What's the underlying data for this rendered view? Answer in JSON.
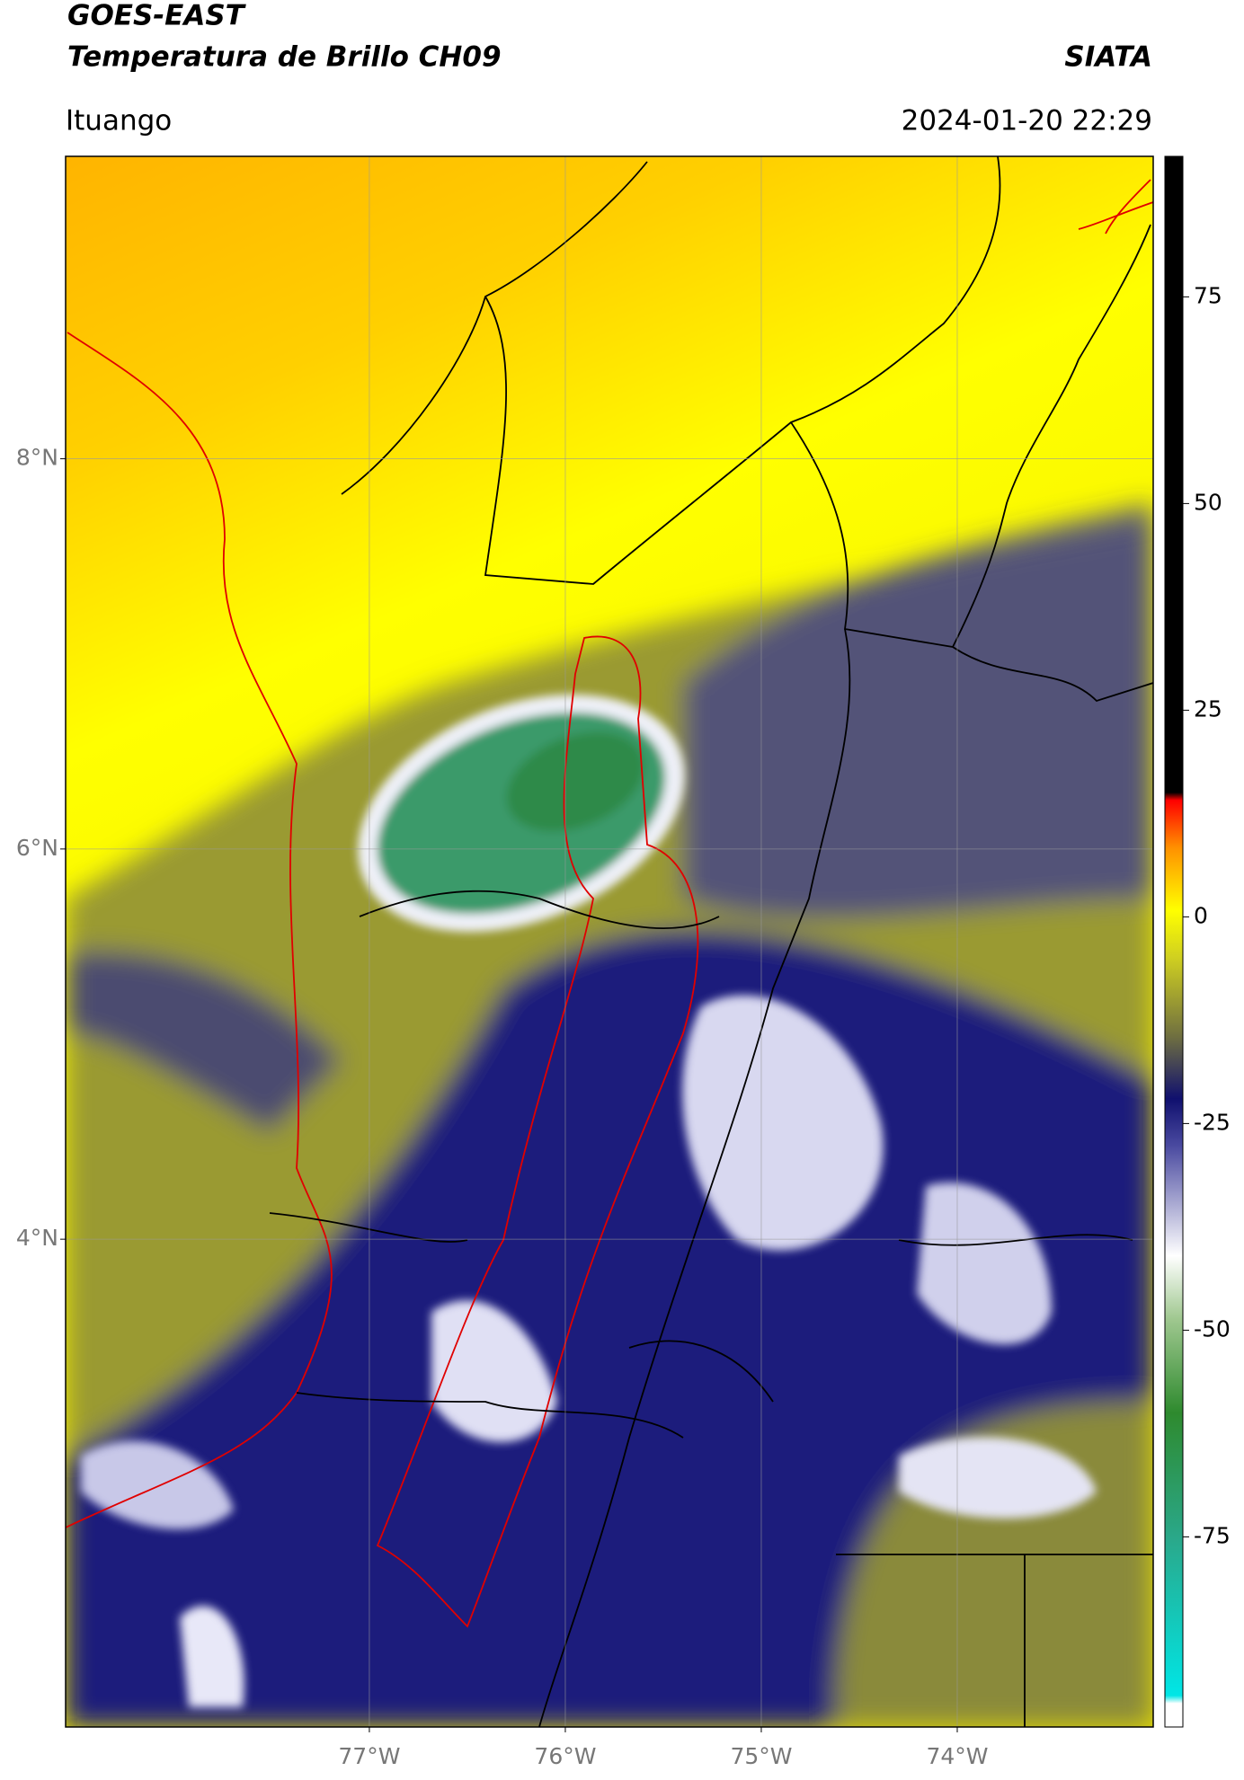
{
  "header": {
    "title": "GOES-EAST",
    "subtitle": "Temperatura de Brillo CH09",
    "source": "SIATA",
    "location": "Ituango",
    "datetime": "2024-01-20 22:29"
  },
  "map": {
    "lonlim": [
      -78.55,
      -73.0
    ],
    "latlim": [
      1.5,
      9.55
    ],
    "lat_ticks": [
      {
        "value": 8,
        "label": "8°N"
      },
      {
        "value": 6,
        "label": "6°N"
      },
      {
        "value": 4,
        "label": "4°N"
      }
    ],
    "lon_ticks": [
      {
        "value": -77,
        "label": "77°W"
      },
      {
        "value": -76,
        "label": "76°W"
      },
      {
        "value": -75,
        "label": "75°W"
      },
      {
        "value": -74,
        "label": "74°W"
      }
    ],
    "grid": true
  },
  "colorbar": {
    "lim": [
      -98,
      92
    ],
    "ticks": [
      75,
      50,
      25,
      0,
      -25,
      -50,
      -75
    ]
  }
}
